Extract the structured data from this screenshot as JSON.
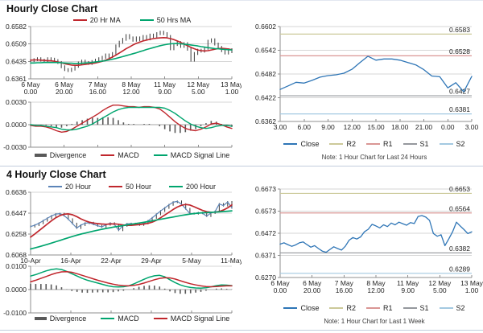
{
  "colors": {
    "red": "#c0272d",
    "green": "#00a56e",
    "blue_close": "#2e75b6",
    "blue_ma": "#5b84b8",
    "bars_dark": "#3a3a3a",
    "divergence": "#595959",
    "r2": "#ccc999",
    "r1": "#d99694",
    "s1": "#95989d",
    "s2": "#a3c9e1",
    "grid": "#d6d6d6",
    "axis": "#8f8f8f"
  },
  "chart_data": [
    {
      "id": "hourly-price",
      "type": "line",
      "title": "Hourly Close Chart",
      "ylim": [
        0.6361,
        0.6582
      ],
      "y_ticks": [
        "0.6582",
        "0.6509",
        "0.6435",
        "0.6361"
      ],
      "x_ticks_line1": [
        "6 May",
        "6 May",
        "7 May",
        "8 May",
        "11 May",
        "12 May",
        "13 May"
      ],
      "x_ticks_line2": [
        "0.00",
        "20.00",
        "16.00",
        "12.00",
        "9.00",
        "5.00",
        "1.00"
      ],
      "legend": [
        "20 Hr MA",
        "50 Hrs MA"
      ],
      "series": [
        {
          "name": "Close",
          "color_key": "bars_dark",
          "style": "hlc",
          "values": [
            0.6438,
            0.6442,
            0.6446,
            0.644,
            0.6436,
            0.6446,
            0.6444,
            0.6438,
            0.643,
            0.6412,
            0.64,
            0.6396,
            0.6402,
            0.6414,
            0.6428,
            0.6436,
            0.643,
            0.6426,
            0.6434,
            0.644,
            0.6446,
            0.6452,
            0.6462,
            0.6455,
            0.6468,
            0.65,
            0.6516,
            0.6528,
            0.6544,
            0.6534,
            0.6524,
            0.6534,
            0.6526,
            0.654,
            0.653,
            0.6546,
            0.654,
            0.6552,
            0.6558,
            0.6552,
            0.654,
            0.6488,
            0.6506,
            0.6514,
            0.6498,
            0.651,
            0.6486,
            0.644,
            0.6468,
            0.6482,
            0.6478,
            0.649,
            0.652,
            0.6526,
            0.6508,
            0.6494,
            0.648,
            0.647,
            0.6484,
            0.6476
          ]
        },
        {
          "name": "20 Hr MA",
          "color_key": "red",
          "style": "line",
          "values": [
            0.644,
            0.6441,
            0.6441,
            0.644,
            0.6439,
            0.6438,
            0.6437,
            0.6435,
            0.6432,
            0.6429,
            0.6425,
            0.6422,
            0.6419,
            0.6418,
            0.6418,
            0.642,
            0.6422,
            0.6424,
            0.6426,
            0.6428,
            0.6431,
            0.6435,
            0.644,
            0.6446,
            0.6453,
            0.6461,
            0.647,
            0.6479,
            0.6488,
            0.6496,
            0.6504,
            0.6511,
            0.6516,
            0.6521,
            0.6525,
            0.6528,
            0.6531,
            0.6533,
            0.6534,
            0.6535,
            0.6534,
            0.6531,
            0.6527,
            0.6521,
            0.6515,
            0.6508,
            0.6501,
            0.6494,
            0.6488,
            0.6483,
            0.648,
            0.6479,
            0.648,
            0.6483,
            0.6486,
            0.6489,
            0.649,
            0.6489,
            0.6487,
            0.6484
          ]
        },
        {
          "name": "50 Hrs MA",
          "color_key": "green",
          "style": "line",
          "values": [
            0.6428,
            0.6428,
            0.6429,
            0.6429,
            0.643,
            0.643,
            0.643,
            0.643,
            0.643,
            0.6429,
            0.6428,
            0.6427,
            0.6427,
            0.6426,
            0.6426,
            0.6427,
            0.6428,
            0.6429,
            0.643,
            0.6432,
            0.6434,
            0.6436,
            0.6438,
            0.6441,
            0.6444,
            0.6447,
            0.6451,
            0.6455,
            0.6459,
            0.6463,
            0.6467,
            0.6471,
            0.6476,
            0.648,
            0.6485,
            0.6489,
            0.6493,
            0.6497,
            0.6501,
            0.6504,
            0.6507,
            0.6509,
            0.651,
            0.651,
            0.6509,
            0.6508,
            0.6506,
            0.6504,
            0.6502,
            0.65,
            0.6497,
            0.6495,
            0.6493,
            0.6491,
            0.6489,
            0.6488,
            0.6486,
            0.6485,
            0.6484,
            0.6483
          ]
        }
      ]
    },
    {
      "id": "hourly-macd",
      "type": "line",
      "ylim": [
        -0.003,
        0.003
      ],
      "y_ticks": [
        "0.0030",
        "0.0000",
        "-0.0030"
      ],
      "legend": [
        "Divergence",
        "MACD",
        "MACD Signal Line"
      ],
      "series": [
        {
          "name": "MACD",
          "color_key": "red",
          "values": [
            -0.0001,
            -0.0002,
            -0.0002,
            -0.0003,
            -0.0005,
            -0.0008,
            -0.001,
            -0.0009,
            -0.0006,
            -0.0002,
            0.0002,
            0.0006,
            0.001,
            0.0014,
            0.0019,
            0.0023,
            0.0026,
            0.0026,
            0.0025,
            0.0024,
            0.0024,
            0.0023,
            0.0024,
            0.0024,
            0.0023,
            0.0021,
            0.0016,
            0.001,
            0.0004,
            -0.0001,
            -0.0005,
            -0.0007,
            -0.0008,
            -0.0006,
            -0.0003,
            0.0001,
            0.0002,
            0.0,
            -0.0003,
            -0.0005
          ]
        },
        {
          "name": "MACD Signal Line",
          "color_key": "green",
          "values": [
            0.0,
            -0.0001,
            -0.0001,
            -0.0002,
            -0.0003,
            -0.0004,
            -0.0006,
            -0.0007,
            -0.0007,
            -0.0006,
            -0.0004,
            -0.0002,
            0.0001,
            0.0005,
            0.0009,
            0.0013,
            0.0017,
            0.002,
            0.0022,
            0.0023,
            0.0023,
            0.0023,
            0.0023,
            0.0023,
            0.0023,
            0.0023,
            0.0022,
            0.0019,
            0.0015,
            0.001,
            0.0005,
            0.0001,
            -0.0002,
            -0.0004,
            -0.0005,
            -0.0004,
            -0.0002,
            -0.0001,
            -0.0001,
            -0.0002
          ]
        }
      ]
    },
    {
      "id": "pivot-24h",
      "type": "line",
      "ylim": [
        0.6362,
        0.6602
      ],
      "y_ticks": [
        "0.6602",
        "0.6542",
        "0.6482",
        "0.6422",
        "0.6362"
      ],
      "x_ticks": [
        "3.00",
        "6.00",
        "9.00",
        "12.00",
        "15.00",
        "18.00",
        "21.00",
        "0.00",
        "3.00"
      ],
      "pivots": [
        {
          "name": "R2",
          "value": 0.6583,
          "label": "0.6583",
          "color_key": "r2"
        },
        {
          "name": "R1",
          "value": 0.6528,
          "label": "0.6528",
          "color_key": "r1"
        },
        {
          "name": "S1",
          "value": 0.6427,
          "label": "0.6427",
          "color_key": "s1"
        },
        {
          "name": "S2",
          "value": 0.6381,
          "label": "0.6381",
          "color_key": "s2"
        }
      ],
      "close": {
        "name": "Close",
        "color_key": "blue_close",
        "values": [
          0.6443,
          0.6452,
          0.6461,
          0.6459,
          0.6466,
          0.6474,
          0.6478,
          0.648,
          0.6484,
          0.6494,
          0.6511,
          0.6527,
          0.6517,
          0.652,
          0.652,
          0.6517,
          0.6511,
          0.6505,
          0.6493,
          0.6477,
          0.6475,
          0.6447,
          0.646,
          0.6437,
          0.6476
        ]
      },
      "legend": [
        "Close",
        "R2",
        "R1",
        "S1",
        "S2"
      ],
      "note": "Note: 1 Hour Chart for Last 24 Hours"
    },
    {
      "id": "fourhourly-price",
      "type": "line",
      "title": "4 Hourly Close Chart",
      "ylim": [
        0.6068,
        0.6636
      ],
      "y_ticks": [
        "0.6636",
        "0.6447",
        "0.6258",
        "0.6068"
      ],
      "x_ticks": [
        "10-Apr",
        "16-Apr",
        "22-Apr",
        "29-Apr",
        "5-May",
        "11-May"
      ],
      "legend": [
        "20 Hour",
        "50 Hour",
        "200 Hour"
      ],
      "series": [
        {
          "name": "20 Hour",
          "color_key": "blue_ma",
          "style": "hlc-line",
          "values": [
            0.6325,
            0.6338,
            0.6355,
            0.6378,
            0.64,
            0.6422,
            0.6438,
            0.6442,
            0.6424,
            0.6392,
            0.6352,
            0.6312,
            0.6338,
            0.6356,
            0.636,
            0.6346,
            0.6332,
            0.6322,
            0.6342,
            0.6356,
            0.6344,
            0.6292,
            0.6332,
            0.635,
            0.6352,
            0.6344,
            0.634,
            0.6354,
            0.6376,
            0.6404,
            0.6436,
            0.6466,
            0.6494,
            0.6522,
            0.6546,
            0.6553,
            0.6528,
            0.6486,
            0.6444,
            0.6442,
            0.645,
            0.6446,
            0.642,
            0.6448,
            0.6462,
            0.653,
            0.6515,
            0.6548,
            0.6495
          ]
        },
        {
          "name": "50 Hour",
          "color_key": "red",
          "style": "line",
          "values": [
            0.623,
            0.6258,
            0.6288,
            0.6318,
            0.6348,
            0.6378,
            0.6405,
            0.6425,
            0.6437,
            0.644,
            0.6432,
            0.6415,
            0.6395,
            0.6378,
            0.6365,
            0.6357,
            0.6352,
            0.6348,
            0.6346,
            0.6348,
            0.635,
            0.6346,
            0.634,
            0.6336,
            0.6336,
            0.634,
            0.6344,
            0.6348,
            0.6354,
            0.6365,
            0.6382,
            0.6405,
            0.643,
            0.6455,
            0.648,
            0.6502,
            0.6518,
            0.6525,
            0.652,
            0.6505,
            0.6488,
            0.6472,
            0.646,
            0.6455,
            0.6456,
            0.6462,
            0.6475,
            0.6495,
            0.6522
          ]
        },
        {
          "name": "200 Hour",
          "color_key": "green",
          "style": "line",
          "values": [
            0.6122,
            0.6132,
            0.6142,
            0.6153,
            0.6164,
            0.6176,
            0.6188,
            0.62,
            0.6212,
            0.6224,
            0.6236,
            0.6247,
            0.6257,
            0.6266,
            0.6275,
            0.6284,
            0.6292,
            0.63,
            0.6308,
            0.6315,
            0.6322,
            0.6328,
            0.6334,
            0.634,
            0.6346,
            0.6352,
            0.6358,
            0.6364,
            0.637,
            0.6377,
            0.6384,
            0.6391,
            0.6398,
            0.6405,
            0.6412,
            0.6419,
            0.6426,
            0.6432,
            0.6438,
            0.6443,
            0.6447,
            0.645,
            0.6452,
            0.6454,
            0.6456,
            0.6458,
            0.6461,
            0.6464,
            0.6468
          ]
        }
      ]
    },
    {
      "id": "fourhourly-macd",
      "type": "line",
      "ylim": [
        -0.01,
        0.01
      ],
      "y_ticks": [
        "0.0100",
        "0.0000",
        "-0.0100"
      ],
      "legend": [
        "Divergence",
        "MACD",
        "MACD Signal Line"
      ],
      "series": [
        {
          "name": "MACD",
          "color_key": "green",
          "values": [
            0.0058,
            0.0064,
            0.0072,
            0.008,
            0.0086,
            0.0089,
            0.0086,
            0.0078,
            0.0068,
            0.0058,
            0.0048,
            0.004,
            0.0034,
            0.0028,
            0.0022,
            0.0016,
            0.0012,
            0.0011,
            0.0012,
            0.0016,
            0.0024,
            0.0034,
            0.0044,
            0.0053,
            0.0059,
            0.0061,
            0.0055,
            0.0042,
            0.003,
            0.002,
            0.0013,
            0.0009,
            0.0007,
            0.0006,
            0.0008,
            0.0012,
            0.0017,
            0.002,
            0.0019,
            0.0017
          ]
        },
        {
          "name": "MACD Signal Line",
          "color_key": "red",
          "values": [
            0.0033,
            0.004,
            0.0048,
            0.0056,
            0.0064,
            0.0071,
            0.0076,
            0.0077,
            0.0074,
            0.0068,
            0.0061,
            0.0054,
            0.0047,
            0.004,
            0.0034,
            0.0028,
            0.0023,
            0.0019,
            0.0017,
            0.0016,
            0.0018,
            0.0022,
            0.0028,
            0.0035,
            0.0042,
            0.0048,
            0.0051,
            0.005,
            0.0045,
            0.0038,
            0.0031,
            0.0025,
            0.002,
            0.0016,
            0.0013,
            0.0012,
            0.0013,
            0.0015,
            0.0016,
            0.0016
          ]
        }
      ]
    },
    {
      "id": "pivot-1week",
      "type": "line",
      "ylim": [
        0.627,
        0.6673
      ],
      "y_ticks": [
        "0.6673",
        "0.6573",
        "0.6472",
        "0.6371",
        "0.6270"
      ],
      "x_ticks_line1": [
        "6 May",
        "6 May",
        "7 May",
        "8 May",
        "11 May",
        "12 May",
        "13 May"
      ],
      "x_ticks_line2": [
        "0.00",
        "20.00",
        "16.00",
        "12.00",
        "9.00",
        "5.00",
        "1.00"
      ],
      "pivots": [
        {
          "name": "R2",
          "value": 0.6653,
          "label": "0.6653",
          "color_key": "r2"
        },
        {
          "name": "R1",
          "value": 0.6564,
          "label": "0.6564",
          "color_key": "r1"
        },
        {
          "name": "S1",
          "value": 0.6382,
          "label": "0.6382",
          "color_key": "s1"
        },
        {
          "name": "S2",
          "value": 0.6289,
          "label": "0.6289",
          "color_key": "s2"
        }
      ],
      "close": {
        "name": "Close",
        "color_key": "blue_close",
        "values": [
          0.6422,
          0.6428,
          0.642,
          0.6412,
          0.6418,
          0.6428,
          0.6432,
          0.642,
          0.6408,
          0.6415,
          0.6402,
          0.639,
          0.6385,
          0.6398,
          0.641,
          0.6402,
          0.6395,
          0.6412,
          0.644,
          0.6452,
          0.6445,
          0.6455,
          0.6478,
          0.649,
          0.6512,
          0.6505,
          0.6496,
          0.651,
          0.6502,
          0.6518,
          0.651,
          0.6522,
          0.6515,
          0.6508,
          0.652,
          0.6516,
          0.6548,
          0.6552,
          0.6545,
          0.653,
          0.647,
          0.6458,
          0.6465,
          0.6415,
          0.6445,
          0.6478,
          0.6522,
          0.6505,
          0.6488,
          0.647,
          0.6478
        ]
      },
      "legend": [
        "Close",
        "R2",
        "R1",
        "S1",
        "S2"
      ],
      "note": "Note: 1 Hour Chart for Last 1 Week"
    }
  ]
}
